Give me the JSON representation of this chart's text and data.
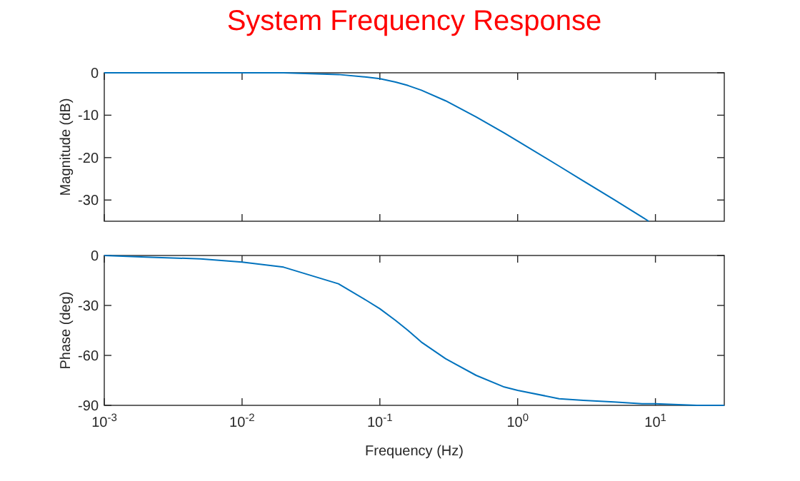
{
  "chart_data": [
    {
      "type": "line",
      "title": "System Frequency Response",
      "ylabel": "Magnitude (dB)",
      "log": "x",
      "xlim": [
        0.001,
        31.6
      ],
      "ylim": [
        -35,
        0
      ],
      "tick_labels": "y",
      "xticks": [
        {
          "value": 0.001,
          "label": null
        },
        {
          "value": 0.01,
          "label": null
        },
        {
          "value": 0.1,
          "label": null
        },
        {
          "value": 1,
          "label": null
        },
        {
          "value": 10,
          "label": null
        }
      ],
      "yticks": [
        -30,
        -20,
        -10,
        0
      ],
      "x": [
        0.001,
        0.002,
        0.005,
        0.01,
        0.02,
        0.05,
        0.08,
        0.1,
        0.13,
        0.16,
        0.2,
        0.3,
        0.5,
        0.8,
        1,
        2,
        3,
        5,
        8,
        8.94
      ],
      "series": [
        {
          "color": "#0072bd",
          "values": [
            0,
            0,
            0,
            0,
            0,
            -0.4,
            -1,
            -1.4,
            -2.2,
            -3,
            -4.1,
            -6.6,
            -10.4,
            -14.2,
            -16.1,
            -22,
            -25.5,
            -29.9,
            -34,
            -35
          ]
        }
      ]
    },
    {
      "type": "line",
      "xlabel": "Frequency (Hz)",
      "ylabel": "Phase (deg)",
      "log": "x",
      "xlim": [
        0.001,
        31.6
      ],
      "ylim": [
        -90,
        0
      ],
      "xticks": [
        {
          "value": 0.001,
          "label": "10$^{-3}$"
        },
        {
          "value": 0.01,
          "label": "10$^{-2}$"
        },
        {
          "value": 0.1,
          "label": "10$^{-1}$"
        },
        {
          "value": 1,
          "label": "10$^{0}$"
        },
        {
          "value": 10,
          "label": "10$^{1}$"
        }
      ],
      "yticks": [
        -90,
        -60,
        -30,
        0
      ],
      "x": [
        0.001,
        0.002,
        0.005,
        0.01,
        0.02,
        0.05,
        0.08,
        0.1,
        0.13,
        0.16,
        0.2,
        0.3,
        0.5,
        0.8,
        1,
        2,
        3,
        5,
        8,
        10,
        20,
        31.6
      ],
      "series": [
        {
          "color": "#0072bd",
          "values": [
            0,
            -1,
            -2,
            -4,
            -7,
            -17,
            -27,
            -32,
            -39,
            -45,
            -52,
            -62,
            -72,
            -79,
            -81,
            -86,
            -87,
            -88,
            -89,
            -89,
            -90,
            -90
          ]
        }
      ]
    }
  ]
}
